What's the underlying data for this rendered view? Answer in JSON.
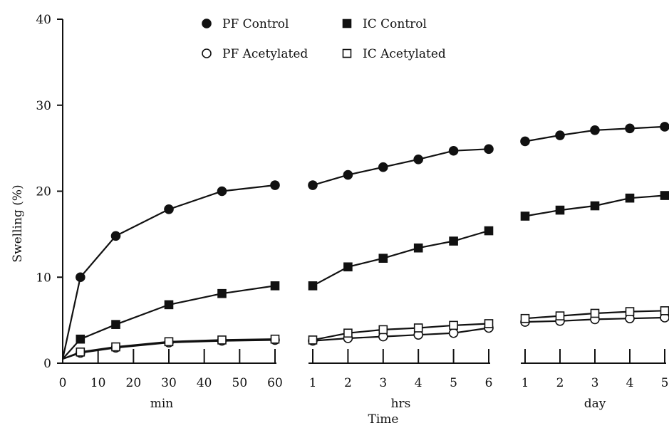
{
  "chart_data": {
    "type": "line",
    "ylabel": "Swelling (%)",
    "xlabel": "Time",
    "ylim": [
      0,
      40
    ],
    "yticks": [
      0,
      10,
      20,
      30,
      40
    ],
    "grid": false,
    "legend_position": "top",
    "segments": [
      {
        "label": "min",
        "ticks": [
          "0",
          "10",
          "20",
          "30",
          "40",
          "50",
          "60"
        ],
        "range": [
          0,
          60
        ]
      },
      {
        "label": "hrs",
        "ticks": [
          "1",
          "2",
          "3",
          "4",
          "5",
          "6"
        ],
        "range": [
          1,
          6
        ]
      },
      {
        "label": "day",
        "ticks": [
          "1",
          "2",
          "3",
          "4",
          "5"
        ],
        "range": [
          1,
          5
        ]
      }
    ],
    "series": [
      {
        "name": "PF Control",
        "marker": "filled-circle",
        "min": [
          [
            0,
            0.5
          ],
          [
            5,
            10
          ],
          [
            15,
            14.8
          ],
          [
            30,
            17.9
          ],
          [
            45,
            20
          ],
          [
            60,
            20.7
          ]
        ],
        "hrs": [
          [
            1,
            20.7
          ],
          [
            2,
            21.9
          ],
          [
            3,
            22.8
          ],
          [
            4,
            23.7
          ],
          [
            5,
            24.7
          ],
          [
            6,
            24.9
          ]
        ],
        "day": [
          [
            1,
            25.8
          ],
          [
            2,
            26.5
          ],
          [
            3,
            27.1
          ],
          [
            4,
            27.3
          ],
          [
            5,
            27.5
          ]
        ]
      },
      {
        "name": "IC Control",
        "marker": "filled-square",
        "min": [
          [
            0,
            0.5
          ],
          [
            5,
            2.8
          ],
          [
            15,
            4.5
          ],
          [
            30,
            6.8
          ],
          [
            45,
            8.1
          ],
          [
            60,
            9
          ]
        ],
        "hrs": [
          [
            1,
            9
          ],
          [
            2,
            11.2
          ],
          [
            3,
            12.2
          ],
          [
            4,
            13.4
          ],
          [
            5,
            14.2
          ],
          [
            6,
            15.4
          ]
        ],
        "day": [
          [
            1,
            17.1
          ],
          [
            2,
            17.8
          ],
          [
            3,
            18.3
          ],
          [
            4,
            19.2
          ],
          [
            5,
            19.5
          ]
        ]
      },
      {
        "name": "PF Acetylated",
        "marker": "open-circle",
        "min": [
          [
            0,
            0.5
          ],
          [
            5,
            1.2
          ],
          [
            15,
            1.8
          ],
          [
            30,
            2.4
          ],
          [
            45,
            2.6
          ],
          [
            60,
            2.7
          ]
        ],
        "hrs": [
          [
            1,
            2.6
          ],
          [
            2,
            2.9
          ],
          [
            3,
            3.1
          ],
          [
            4,
            3.3
          ],
          [
            5,
            3.5
          ],
          [
            6,
            4.1
          ]
        ],
        "day": [
          [
            1,
            4.8
          ],
          [
            2,
            4.9
          ],
          [
            3,
            5.1
          ],
          [
            4,
            5.2
          ],
          [
            5,
            5.3
          ]
        ]
      },
      {
        "name": "IC Acetylated",
        "marker": "open-square",
        "min": [
          [
            0,
            0.5
          ],
          [
            5,
            1.3
          ],
          [
            15,
            1.9
          ],
          [
            30,
            2.5
          ],
          [
            45,
            2.7
          ],
          [
            60,
            2.8
          ]
        ],
        "hrs": [
          [
            1,
            2.7
          ],
          [
            2,
            3.5
          ],
          [
            3,
            3.9
          ],
          [
            4,
            4.1
          ],
          [
            5,
            4.4
          ],
          [
            6,
            4.6
          ]
        ],
        "day": [
          [
            1,
            5.2
          ],
          [
            2,
            5.5
          ],
          [
            3,
            5.8
          ],
          [
            4,
            6
          ],
          [
            5,
            6.1
          ]
        ]
      }
    ]
  }
}
